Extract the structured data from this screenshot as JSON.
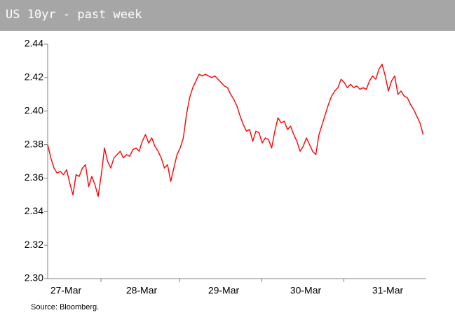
{
  "chart_data": {
    "type": "line",
    "title": "US 10yr - past week",
    "source": "Source: Bloomberg.",
    "categories": [
      null,
      null,
      null,
      null,
      "27-Mar",
      null,
      null,
      null,
      null,
      null,
      null,
      null,
      null,
      null,
      null,
      null,
      null,
      null,
      null,
      null,
      null,
      null,
      null,
      null,
      null,
      null,
      null,
      null,
      "28-Mar",
      null,
      null,
      null,
      null,
      null,
      null,
      null,
      null,
      null,
      null,
      null,
      null,
      null,
      null,
      null,
      null,
      null,
      null,
      null,
      null,
      null,
      null,
      null,
      null,
      null,
      "29-Mar",
      null,
      null,
      null,
      null,
      null,
      null,
      null,
      null,
      null,
      null,
      null,
      null,
      null,
      null,
      null,
      null,
      null,
      null,
      null,
      null,
      null,
      null,
      null,
      null,
      null,
      "30-Mar",
      null,
      null,
      null,
      null,
      null,
      null,
      null,
      null,
      null,
      null,
      null,
      null,
      null,
      null,
      null,
      null,
      null,
      null,
      null,
      null,
      null,
      null,
      null,
      null,
      null,
      "31-Mar",
      null,
      null,
      null,
      null,
      null,
      null,
      null,
      null,
      null,
      null,
      null,
      null,
      null
    ],
    "values": [
      2.38,
      2.372,
      2.366,
      2.363,
      2.364,
      2.362,
      2.365,
      2.357,
      2.35,
      2.362,
      2.361,
      2.366,
      2.368,
      2.355,
      2.361,
      2.356,
      2.349,
      2.362,
      2.378,
      2.37,
      2.366,
      2.372,
      2.374,
      2.376,
      2.372,
      2.374,
      2.373,
      2.377,
      2.378,
      2.376,
      2.382,
      2.386,
      2.381,
      2.384,
      2.379,
      2.376,
      2.372,
      2.366,
      2.368,
      2.358,
      2.366,
      2.374,
      2.378,
      2.384,
      2.398,
      2.408,
      2.414,
      2.418,
      2.422,
      2.421,
      2.422,
      2.421,
      2.42,
      2.421,
      2.419,
      2.417,
      2.415,
      2.414,
      2.41,
      2.407,
      2.403,
      2.397,
      2.392,
      2.388,
      2.389,
      2.382,
      2.388,
      2.387,
      2.381,
      2.384,
      2.383,
      2.378,
      2.388,
      2.396,
      2.393,
      2.394,
      2.389,
      2.391,
      2.386,
      2.382,
      2.376,
      2.379,
      2.384,
      2.38,
      2.376,
      2.374,
      2.386,
      2.392,
      2.398,
      2.404,
      2.409,
      2.412,
      2.414,
      2.419,
      2.417,
      2.414,
      2.416,
      2.414,
      2.415,
      2.413,
      2.414,
      2.413,
      2.418,
      2.421,
      2.419,
      2.425,
      2.428,
      2.421,
      2.412,
      2.418,
      2.421,
      2.41,
      2.412,
      2.409,
      2.408,
      2.404,
      2.401,
      2.397,
      2.393,
      2.386
    ],
    "color": "#ff0000",
    "ylim": [
      2.3,
      2.44
    ],
    "yticks": [
      {
        "value": 2.3,
        "label": "2.30"
      },
      2.32,
      2.34,
      2.36,
      2.38,
      {
        "value": 2.4,
        "label": "2.40"
      },
      2.42,
      2.44
    ]
  }
}
